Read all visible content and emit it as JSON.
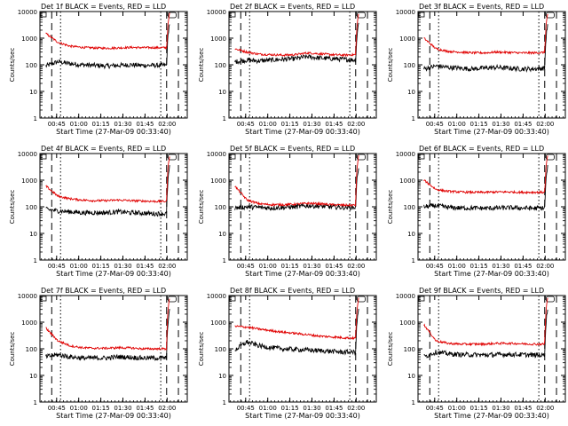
{
  "layout": {
    "rows": 3,
    "cols": 3
  },
  "colors": {
    "events": "#000000",
    "lld": "#e00000",
    "axis": "#000000",
    "background": "#ffffff"
  },
  "axes": {
    "ylabel": "Counts/sec",
    "xlabel": "Start Time (27-Mar-09 00:33:40)",
    "yscale": "log",
    "ylim": [
      1,
      10000
    ],
    "ytick_labels": [
      "1",
      "10",
      "100",
      "1000",
      "10000"
    ],
    "xlim_minutes_after_start": [
      0,
      100
    ],
    "xtick_labels": [
      "00:45",
      "01:00",
      "01:15",
      "01:30",
      "01:45",
      "02:00"
    ]
  },
  "chart_data": [
    {
      "type": "line",
      "title": "Det 1f BLACK = Events, RED = LLD",
      "series": [
        {
          "name": "Events",
          "values": [
            90,
            130,
            110,
            100,
            95,
            90,
            95,
            100,
            95,
            95,
            95,
            3500
          ]
        },
        {
          "name": "LLD",
          "values": [
            1500,
            700,
            500,
            450,
            430,
            420,
            430,
            450,
            440,
            440,
            440,
            8000
          ]
        }
      ]
    },
    {
      "type": "line",
      "title": "Det 2f BLACK = Events, RED = LLD",
      "series": [
        {
          "name": "Events",
          "values": [
            130,
            150,
            140,
            150,
            160,
            170,
            200,
            180,
            170,
            160,
            150,
            3500
          ]
        },
        {
          "name": "LLD",
          "values": [
            400,
            300,
            250,
            240,
            230,
            240,
            280,
            260,
            240,
            230,
            240,
            8000
          ]
        }
      ]
    },
    {
      "type": "line",
      "title": "Det 3f BLACK = Events, RED = LLD",
      "series": [
        {
          "name": "Events",
          "values": [
            70,
            90,
            80,
            75,
            70,
            75,
            80,
            75,
            70,
            70,
            75,
            3000
          ]
        },
        {
          "name": "LLD",
          "values": [
            1000,
            400,
            320,
            300,
            280,
            280,
            300,
            290,
            280,
            280,
            290,
            8000
          ]
        }
      ]
    },
    {
      "type": "line",
      "title": "Det 4f BLACK = Events, RED = LLD",
      "series": [
        {
          "name": "Events",
          "values": [
            80,
            70,
            65,
            60,
            60,
            60,
            65,
            60,
            58,
            55,
            55,
            3000
          ]
        },
        {
          "name": "LLD",
          "values": [
            600,
            250,
            200,
            180,
            170,
            170,
            180,
            170,
            165,
            160,
            160,
            8000
          ]
        }
      ]
    },
    {
      "type": "line",
      "title": "Det 5f BLACK = Events, RED = LLD",
      "series": [
        {
          "name": "Events",
          "values": [
            90,
            100,
            95,
            90,
            95,
            100,
            110,
            105,
            100,
            95,
            95,
            3000
          ]
        },
        {
          "name": "LLD",
          "values": [
            600,
            180,
            130,
            120,
            120,
            125,
            135,
            130,
            120,
            115,
            115,
            8000
          ]
        }
      ]
    },
    {
      "type": "line",
      "title": "Det 6f BLACK = Events, RED = LLD",
      "series": [
        {
          "name": "Events",
          "values": [
            100,
            110,
            95,
            90,
            90,
            88,
            90,
            92,
            90,
            88,
            90,
            3000
          ]
        },
        {
          "name": "LLD",
          "values": [
            1000,
            450,
            380,
            360,
            350,
            350,
            360,
            360,
            350,
            350,
            350,
            8000
          ]
        }
      ]
    },
    {
      "type": "line",
      "title": "Det 7f BLACK = Events, RED = LLD",
      "series": [
        {
          "name": "Events",
          "values": [
            50,
            60,
            50,
            45,
            45,
            45,
            50,
            48,
            45,
            45,
            45,
            3000
          ]
        },
        {
          "name": "LLD",
          "values": [
            600,
            200,
            130,
            110,
            105,
            105,
            110,
            108,
            100,
            100,
            100,
            8000
          ]
        }
      ]
    },
    {
      "type": "line",
      "title": "Det 8f BLACK = Events, RED = LLD",
      "series": [
        {
          "name": "Events",
          "values": [
            90,
            180,
            130,
            110,
            100,
            95,
            90,
            85,
            80,
            75,
            75,
            3000
          ]
        },
        {
          "name": "LLD",
          "values": [
            700,
            650,
            550,
            480,
            420,
            380,
            340,
            300,
            280,
            260,
            250,
            8000
          ]
        }
      ]
    },
    {
      "type": "line",
      "title": "Det 9f BLACK = Events, RED = LLD",
      "series": [
        {
          "name": "Events",
          "values": [
            50,
            75,
            65,
            60,
            60,
            58,
            60,
            62,
            60,
            58,
            58,
            3000
          ]
        },
        {
          "name": "LLD",
          "values": [
            800,
            200,
            160,
            150,
            150,
            150,
            160,
            160,
            155,
            150,
            150,
            8000
          ]
        }
      ]
    }
  ]
}
